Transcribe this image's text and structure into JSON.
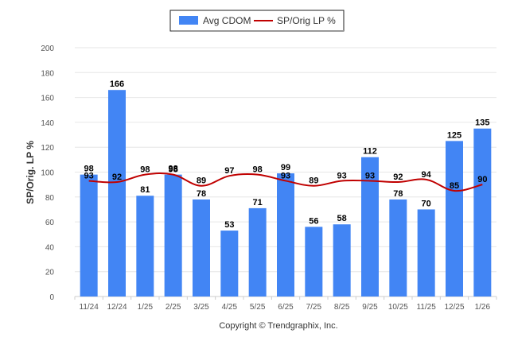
{
  "legend": {
    "bar_label": "Avg CDOM",
    "line_label": "SP/Orig LP %"
  },
  "colors": {
    "bar": "#4285f4",
    "line": "#c00000",
    "grid": "#e6e6e6"
  },
  "copyright": "Copyright © Trendgraphix, Inc.",
  "chart_data": {
    "type": "bar",
    "title": "",
    "xlabel": "",
    "ylabel": "SP/Orig. LP %",
    "ylim": [
      0,
      200
    ],
    "yticks": [
      0,
      20,
      40,
      60,
      80,
      100,
      120,
      140,
      160,
      180,
      200
    ],
    "grid": true,
    "legend_position": "top-center",
    "categories": [
      "11/24",
      "12/24",
      "1/25",
      "2/25",
      "3/25",
      "4/25",
      "5/25",
      "6/25",
      "7/25",
      "8/25",
      "9/25",
      "10/25",
      "11/25",
      "12/25",
      "1/26"
    ],
    "series": [
      {
        "name": "Avg CDOM",
        "type": "bar",
        "values": [
          98,
          166,
          81,
          98,
          78,
          53,
          71,
          99,
          56,
          58,
          112,
          78,
          70,
          125,
          135
        ]
      },
      {
        "name": "SP/Orig LP %",
        "type": "line",
        "values": [
          93,
          92,
          98,
          98,
          89,
          97,
          98,
          93,
          89,
          93,
          93,
          92,
          94,
          85,
          90
        ]
      }
    ]
  }
}
